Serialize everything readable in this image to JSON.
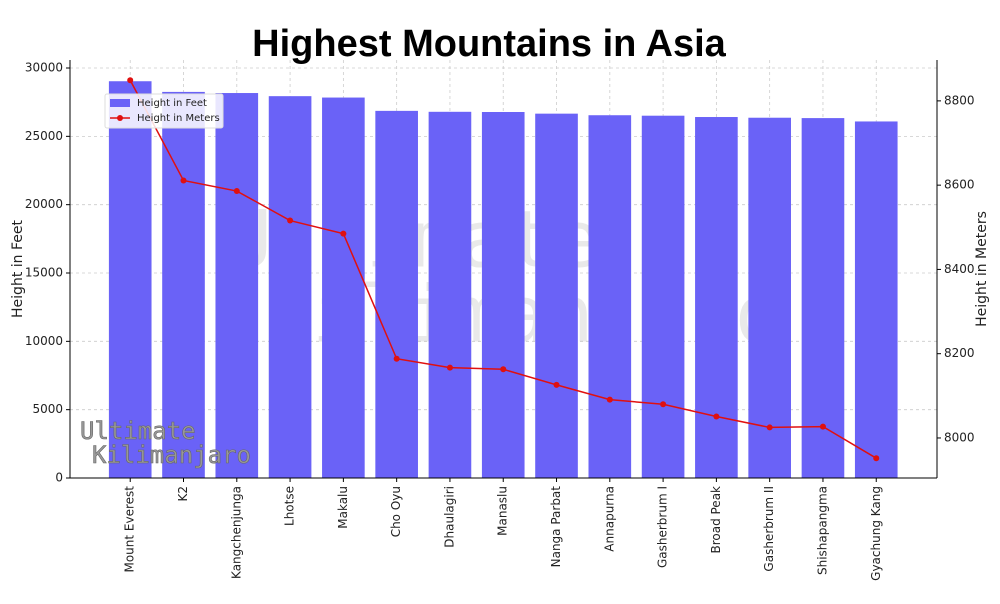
{
  "chart_data": {
    "type": "bar_line",
    "title": "Highest Mountains in Asia",
    "categories": [
      "Mount Everest",
      "K2",
      "Kangchenjunga",
      "Lhotse",
      "Makalu",
      "Cho Oyu",
      "Dhaulagiri",
      "Manaslu",
      "Nanga Parbat",
      "Annapurna",
      "Gasherbrum I",
      "Broad Peak",
      "Gasherbrum II",
      "Shishapangma",
      "Gyachung Kang"
    ],
    "series": [
      {
        "name": "Height in Feet",
        "color": "#6a62f7",
        "values": [
          29032,
          28251,
          28169,
          27940,
          27838,
          26864,
          26795,
          26781,
          26660,
          26545,
          26510,
          26414,
          26362,
          26335,
          26089
        ]
      },
      {
        "name": "Height in Meters",
        "color": "#e01010",
        "axis": "y2",
        "values": [
          8849,
          8611,
          8586,
          8516,
          8485,
          8188,
          8167,
          8163,
          8126,
          8091,
          8080,
          8051,
          8025,
          8027,
          7952
        ]
      }
    ],
    "y_label": "Height in Feet",
    "y2_label": "Height in Meters",
    "ylim": [
      0,
      30586
    ],
    "yticks": [
      0,
      5000,
      10000,
      15000,
      20000,
      25000,
      30000
    ],
    "y2lim": [
      7905,
      8897
    ],
    "y2ticks": [
      8000,
      8200,
      8400,
      8600,
      8800
    ],
    "grid": true,
    "legend": "upper left",
    "watermark": [
      "Ultimate",
      "Kilimanjaro"
    ]
  }
}
